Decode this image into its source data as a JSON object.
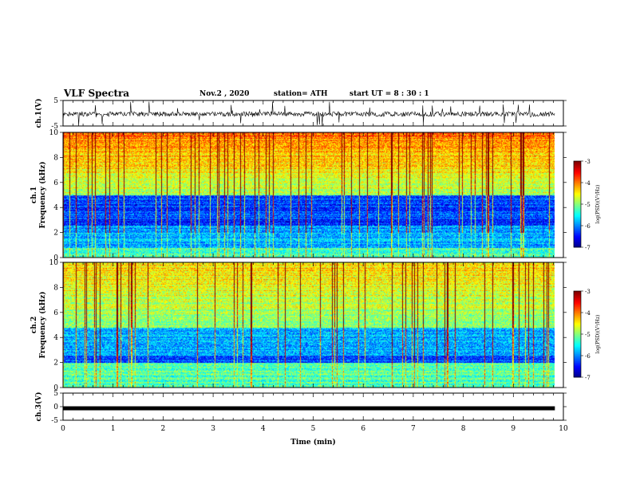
{
  "header": {
    "title": "VLF Spectra",
    "date": "Nov.2 , 2020",
    "station": "station= ATH",
    "start": "start UT = 8 : 30 : 1"
  },
  "chart_data": [
    {
      "type": "line",
      "panel": "ch1-waveform",
      "ylabel": "ch.1(V)",
      "ylim": [
        -5,
        5
      ],
      "yticks": [
        "5",
        "-5"
      ],
      "xlim": [
        0,
        10
      ]
    },
    {
      "type": "heatmap",
      "panel": "ch1-spectrogram",
      "ylabel": "ch.1 Frequency (kHz)",
      "ylim": [
        0,
        10
      ],
      "yticks": [
        "0",
        "2",
        "4",
        "6",
        "8",
        "10"
      ],
      "xlim": [
        0,
        10
      ],
      "colorbar": {
        "label": "log(PSD)(V²/Hz)",
        "range": [
          -7,
          -3
        ],
        "ticks": [
          "-3",
          "-4",
          "-5",
          "-6",
          "-7"
        ]
      }
    },
    {
      "type": "heatmap",
      "panel": "ch2-spectrogram",
      "ylabel": "ch.2 Frequency (kHz)",
      "ylim": [
        0,
        10
      ],
      "yticks": [
        "0",
        "2",
        "4",
        "6",
        "8",
        "10"
      ],
      "xlim": [
        0,
        10
      ],
      "colorbar": {
        "label": "log(PSD)(V²/Hz)",
        "range": [
          -7,
          -3
        ],
        "ticks": [
          "-3",
          "-4",
          "-5",
          "-6",
          "-7"
        ]
      }
    },
    {
      "type": "line",
      "panel": "ch3-waveform",
      "ylabel": "ch.3(V)",
      "ylim": [
        -5,
        5
      ],
      "yticks": [
        "5",
        "0",
        "-5"
      ],
      "xlim": [
        0,
        10
      ],
      "level": -0.6
    }
  ],
  "xaxis": {
    "label": "Time (min)",
    "ticks": [
      "0",
      "1",
      "2",
      "3",
      "4",
      "5",
      "6",
      "7",
      "8",
      "9",
      "10"
    ]
  }
}
